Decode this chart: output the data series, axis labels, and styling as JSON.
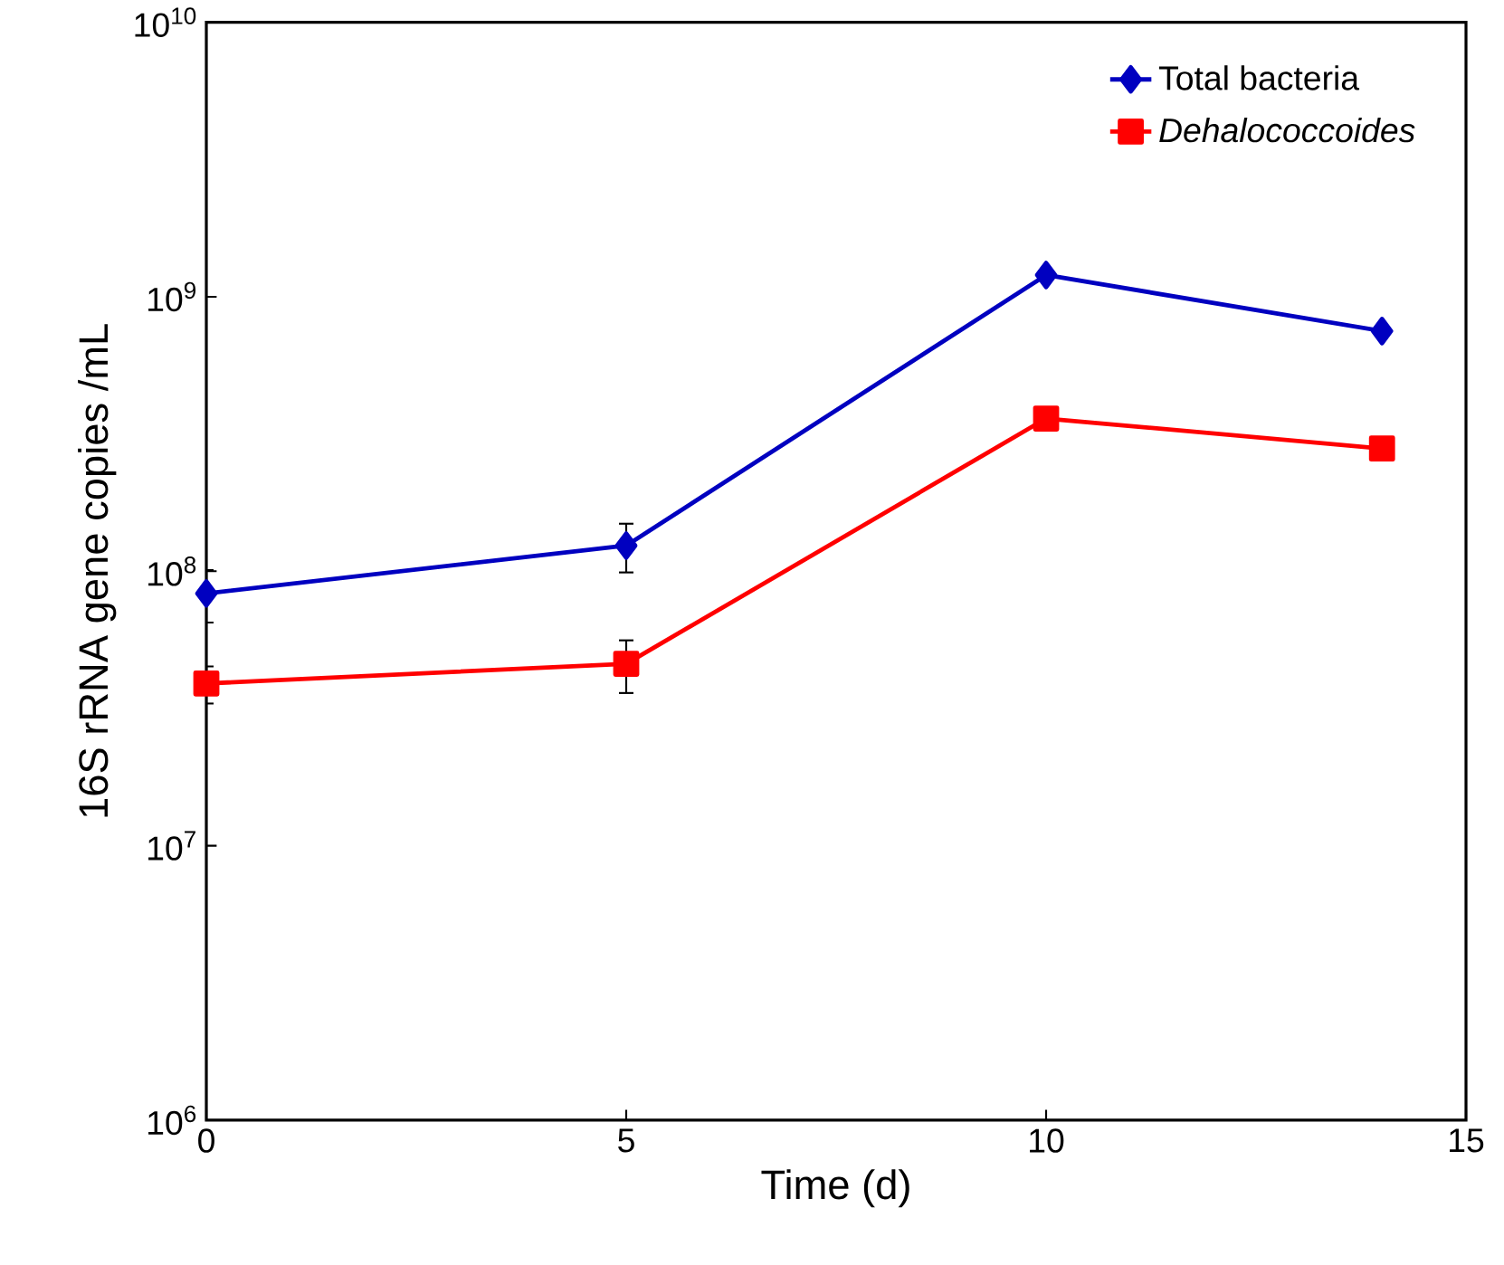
{
  "chart_data": {
    "type": "line",
    "xlabel": "Time (d)",
    "ylabel": "16S rRNA gene copies /mL",
    "x": [
      0,
      5,
      10,
      14
    ],
    "series": [
      {
        "name": "Total bacteria",
        "color": "#0000c0",
        "marker": "diamond",
        "values": [
          83000000,
          124000000,
          1200000000,
          750000000
        ],
        "errors": [
          18000000,
          25000000,
          null,
          null
        ]
      },
      {
        "name": "*Dehalococcoides*",
        "color": "#ff0000",
        "marker": "square",
        "values": [
          39000000,
          46000000,
          360000000,
          280000000
        ],
        "errors": [
          6000000,
          10000000,
          null,
          null
        ]
      }
    ],
    "log": "y",
    "xlim": [
      0,
      15
    ],
    "xticks": [
      0,
      5,
      10,
      15
    ],
    "ylim": [
      1000000,
      10000000000
    ],
    "yticks": [
      {
        "value": 1000000,
        "label": "10$^{6}$"
      },
      {
        "value": 10000000,
        "label": "10$^{7}$"
      },
      {
        "value": 100000000,
        "label": "10$^{8}$"
      },
      {
        "value": 1000000000,
        "label": "10$^{9}$"
      },
      {
        "value": 10000000000,
        "label": "10$^{10}$"
      }
    ],
    "grid": false,
    "legend": "top right"
  }
}
